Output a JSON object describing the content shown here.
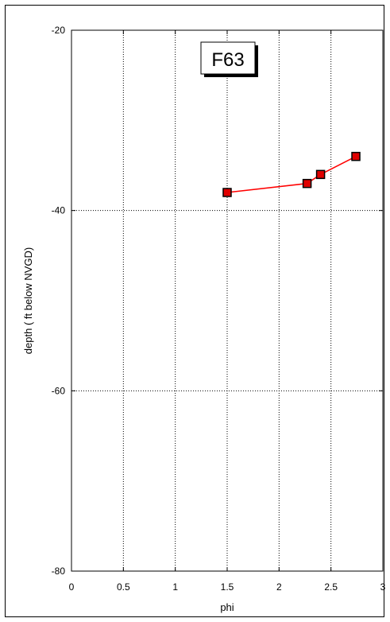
{
  "chart_data": {
    "type": "line",
    "title": "F63",
    "xlabel": "phi",
    "ylabel": "depth ( ft below NVGD)",
    "xlim": [
      0,
      3
    ],
    "ylim": [
      -80,
      -20
    ],
    "xticks": [
      0,
      0.5,
      1,
      1.5,
      2,
      2.5,
      3
    ],
    "yticks": [
      -20,
      -40,
      -60,
      -80
    ],
    "xtick_labels": [
      "0",
      "0.5",
      "1",
      "1.5",
      "2",
      "2.5",
      "3"
    ],
    "ytick_labels": [
      "-20",
      "-40",
      "-60",
      "-80"
    ],
    "grid": true,
    "series": [
      {
        "x": [
          1.5,
          2.27,
          2.4,
          2.74
        ],
        "y": [
          -38,
          -37,
          -36,
          -34
        ],
        "color": "#ff0000",
        "marker": "square",
        "marker_fill": "#e00000"
      }
    ]
  }
}
